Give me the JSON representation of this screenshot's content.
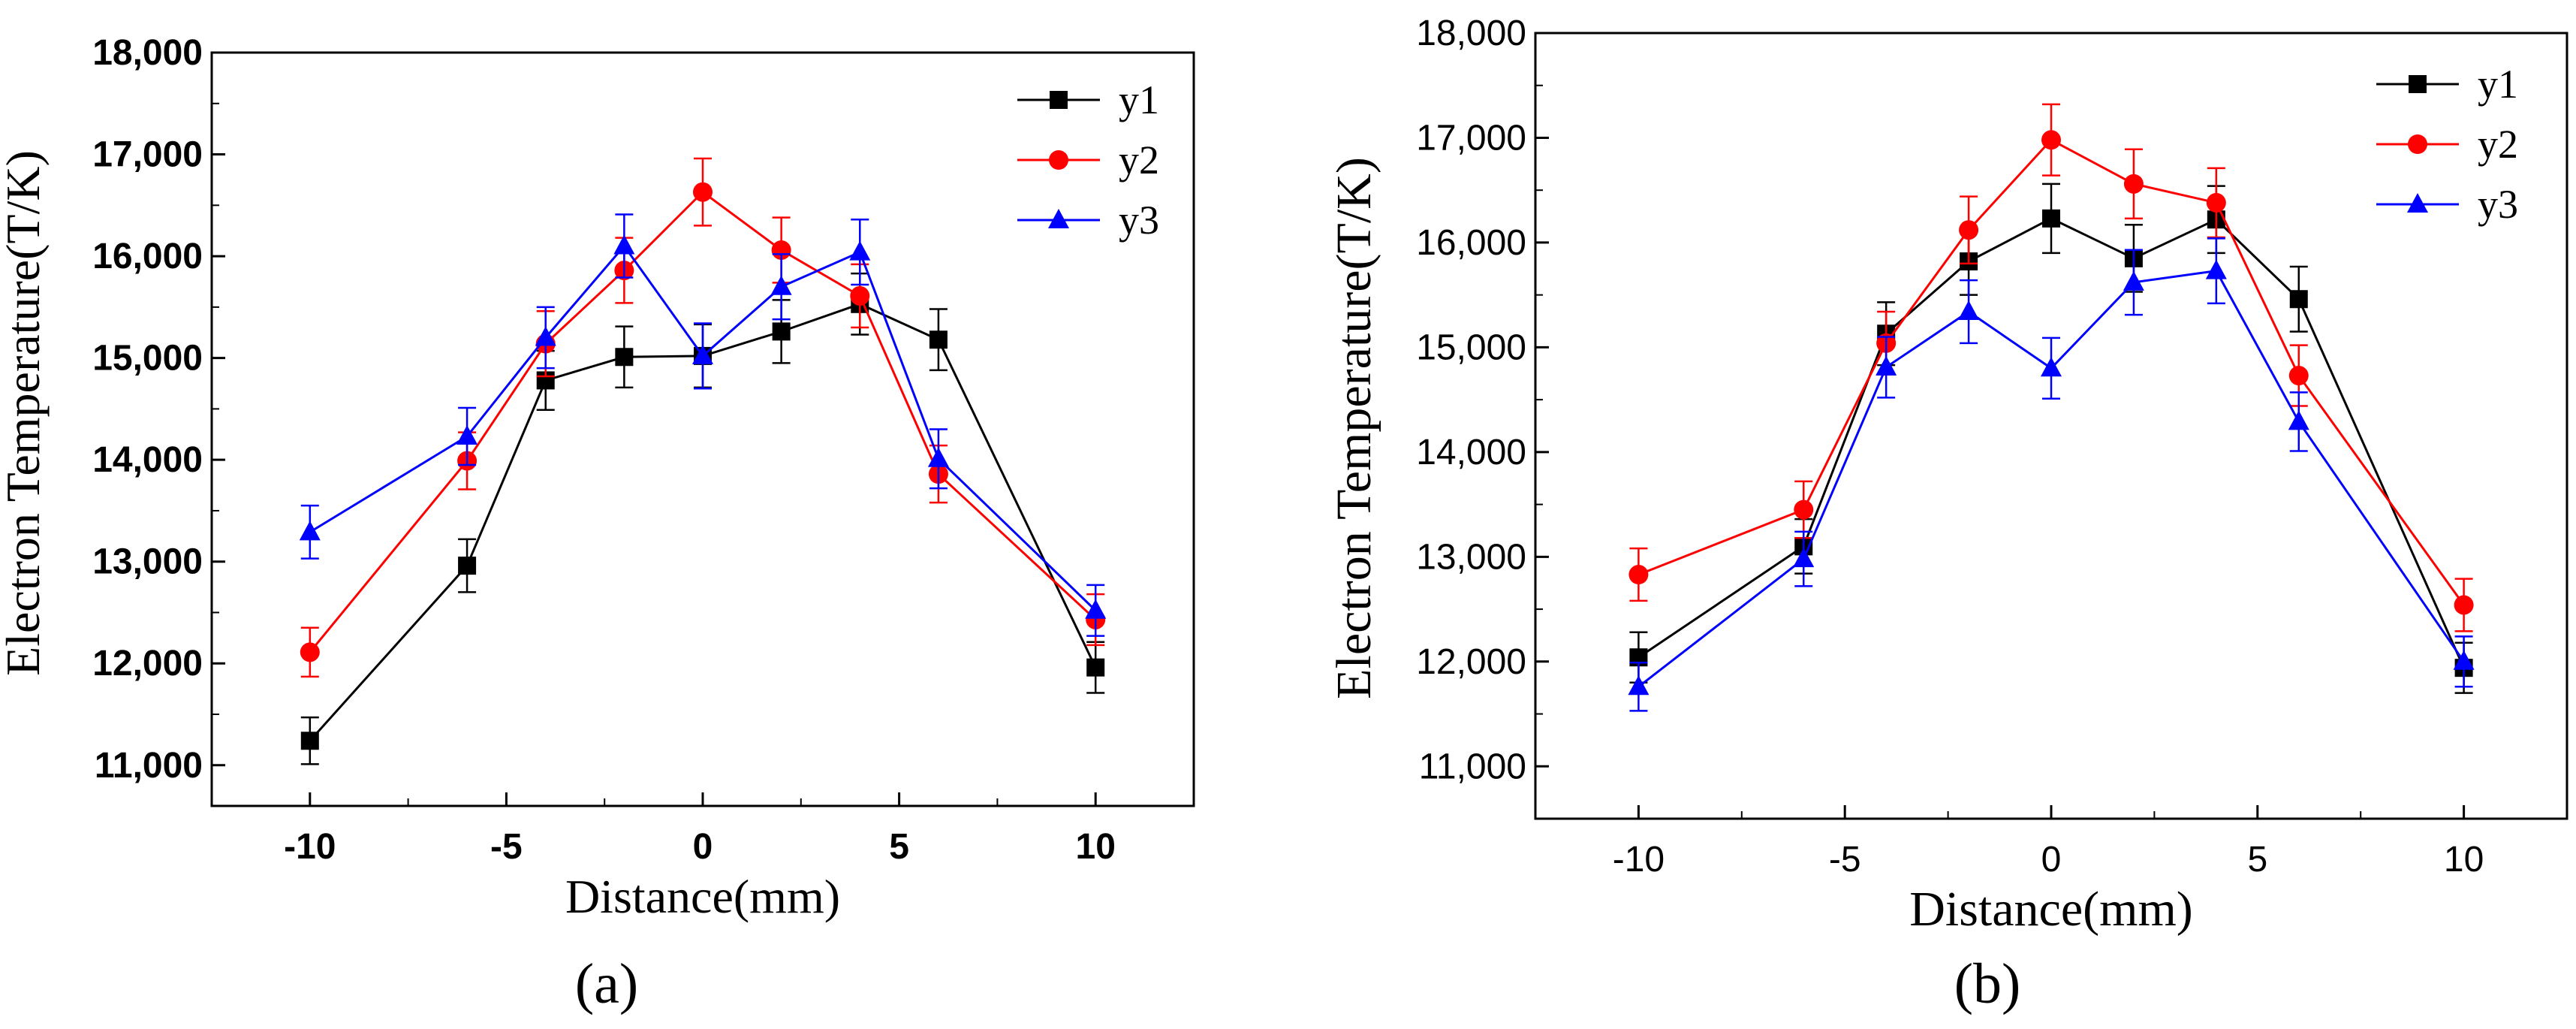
{
  "figure": {
    "panels": [
      {
        "label": "a",
        "label_display": "(a)"
      },
      {
        "label": "b",
        "label_display": "(b)"
      }
    ]
  },
  "chart_data": [
    {
      "panel": "(a)",
      "type": "line",
      "xlabel": "Distance(mm)",
      "ylabel": "Electron Temperature(T/K)",
      "xlim": [
        -12.5,
        12.5
      ],
      "ylim": [
        10600,
        18000
      ],
      "x_ticks": [
        -10,
        -5,
        0,
        5,
        10
      ],
      "x_tick_labels": [
        "-10",
        "-5",
        "0",
        "5",
        "10"
      ],
      "y_ticks": [
        11000,
        12000,
        13000,
        14000,
        15000,
        16000,
        17000,
        18000
      ],
      "y_tick_labels": [
        "11,000",
        "12,000",
        "13,000",
        "14,000",
        "15,000",
        "16,000",
        "17,000",
        "18,000"
      ],
      "tick_label_bold": true,
      "legend_position": "top-right",
      "grid": false,
      "x": [
        -10,
        -6,
        -4,
        -2,
        0,
        2,
        4,
        6,
        10
      ],
      "series": [
        {
          "name": "y1",
          "color": "#000000",
          "marker": "square",
          "values": [
            11240,
            12960,
            14780,
            15010,
            15020,
            15260,
            15530,
            15180,
            11960
          ],
          "errors": [
            230,
            260,
            290,
            300,
            310,
            310,
            300,
            300,
            250
          ]
        },
        {
          "name": "y2",
          "color": "#ff0000",
          "marker": "circle",
          "values": [
            12110,
            13990,
            15140,
            15860,
            16630,
            16060,
            15610,
            13860,
            12430
          ],
          "errors": [
            240,
            280,
            320,
            320,
            330,
            320,
            310,
            280,
            250
          ]
        },
        {
          "name": "y3",
          "color": "#0000ff",
          "marker": "triangle",
          "values": [
            13290,
            14230,
            15200,
            16100,
            15020,
            15700,
            16040,
            14010,
            12520
          ],
          "errors": [
            260,
            280,
            300,
            310,
            320,
            320,
            320,
            290,
            250
          ]
        }
      ]
    },
    {
      "panel": "(b)",
      "type": "line",
      "xlabel": "Distance(mm)",
      "ylabel": "Electron Temperature(T/K)",
      "xlim": [
        -12.5,
        12.5
      ],
      "ylim": [
        10500,
        18000
      ],
      "x_ticks": [
        -10,
        -5,
        0,
        5,
        10
      ],
      "x_tick_labels": [
        "-10",
        "-5",
        "0",
        "5",
        "10"
      ],
      "y_ticks": [
        11000,
        12000,
        13000,
        14000,
        15000,
        16000,
        17000,
        18000
      ],
      "y_tick_labels": [
        "11,000",
        "12,000",
        "13,000",
        "14,000",
        "15,000",
        "16,000",
        "17,000",
        "18,000"
      ],
      "tick_label_bold": false,
      "legend_position": "top-right",
      "grid": false,
      "x": [
        -10,
        -6,
        -4,
        -2,
        0,
        2,
        4,
        6,
        10
      ],
      "series": [
        {
          "name": "y1",
          "color": "#000000",
          "marker": "square",
          "values": [
            12040,
            13100,
            15130,
            15820,
            16230,
            15850,
            16220,
            15460,
            11940
          ],
          "errors": [
            240,
            260,
            300,
            320,
            330,
            320,
            320,
            310,
            240
          ]
        },
        {
          "name": "y2",
          "color": "#ff0000",
          "marker": "circle",
          "values": [
            12830,
            13450,
            15040,
            16120,
            16980,
            16560,
            16380,
            14730,
            12540
          ],
          "errors": [
            250,
            270,
            300,
            320,
            340,
            330,
            330,
            290,
            250
          ]
        },
        {
          "name": "y3",
          "color": "#0000ff",
          "marker": "triangle",
          "values": [
            11760,
            12980,
            14810,
            15340,
            14800,
            15620,
            15730,
            14290,
            12000
          ],
          "errors": [
            230,
            260,
            290,
            300,
            290,
            310,
            310,
            280,
            240
          ]
        }
      ]
    }
  ]
}
